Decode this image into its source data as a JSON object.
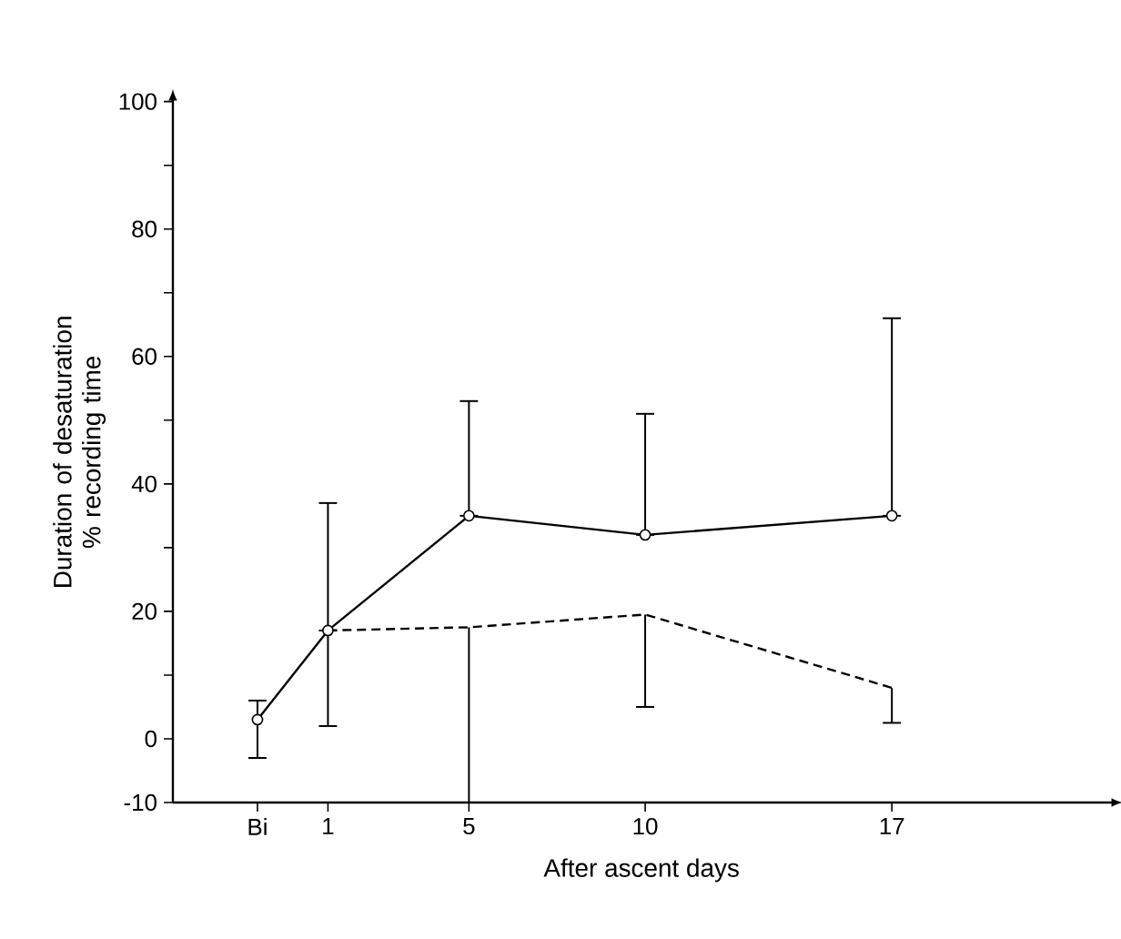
{
  "chart_data": {
    "type": "line",
    "xlabel": "After ascent  days",
    "ylabel": "Duration of desaturation % recording time",
    "x": [
      -1,
      1,
      5,
      10,
      17
    ],
    "series": [
      {
        "color": "#000000",
        "marker": "circle",
        "line_style": "solid",
        "values": [
          3,
          17,
          35,
          32,
          35
        ],
        "errors": [
          [
            -3,
            6
          ],
          [
            17,
            37
          ],
          [
            35,
            53
          ],
          [
            32,
            51
          ],
          [
            35,
            66
          ]
        ]
      },
      {
        "color": "#000000",
        "marker": "none",
        "line_style": "dashed",
        "values": [
          null,
          17,
          17.5,
          19.5,
          8
        ],
        "errors": [
          null,
          [
            2,
            17
          ],
          [
            -10,
            17.5
          ],
          [
            5,
            19.5
          ],
          [
            2.5,
            8
          ]
        ]
      }
    ],
    "xlim": [
      -3.4,
      23.2
    ],
    "ylim": [
      -10,
      100
    ],
    "xticks": [
      {
        "value": -1,
        "label": "Bi"
      },
      1,
      5,
      10,
      17
    ],
    "yticks": [
      -10,
      0,
      {
        "value": 10,
        "label": null
      },
      20,
      {
        "value": 30,
        "label": null
      },
      40,
      {
        "value": 50,
        "label": null
      },
      60,
      {
        "value": 70,
        "label": null
      },
      80,
      {
        "value": 90,
        "label": null
      },
      100
    ],
    "grid": false
  }
}
